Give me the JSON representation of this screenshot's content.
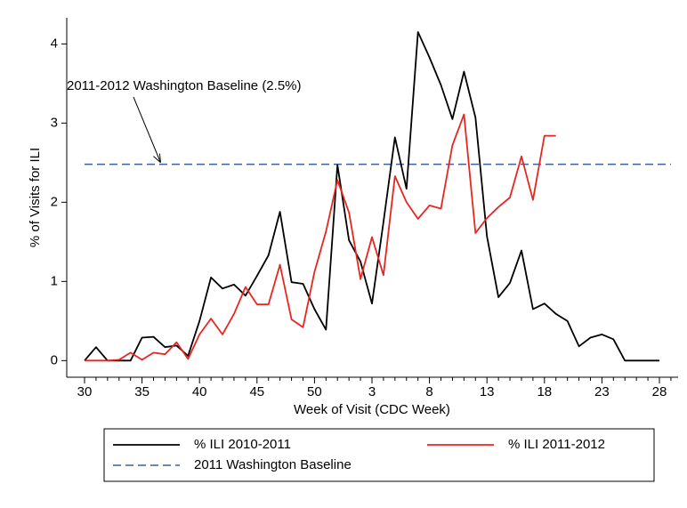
{
  "chart_data": {
    "type": "line",
    "x_label": "Week of Visit (CDC Week)",
    "y_label": "% of Visits for ILI",
    "categories": [
      "30",
      null,
      null,
      null,
      null,
      "35",
      null,
      null,
      null,
      null,
      "40",
      null,
      null,
      null,
      null,
      "45",
      null,
      null,
      null,
      null,
      "50",
      null,
      null,
      null,
      null,
      "3",
      null,
      null,
      null,
      null,
      "8",
      null,
      null,
      null,
      null,
      "13",
      null,
      null,
      null,
      null,
      "18",
      null,
      null,
      null,
      null,
      "23",
      null,
      null,
      null,
      null,
      "28",
      null
    ],
    "series": [
      {
        "name": "% ILI 2010-2011",
        "color": "#000000",
        "values": [
          0,
          0.17,
          0,
          0,
          0,
          0.29,
          0.3,
          0.17,
          0.19,
          0.06,
          0.5,
          1.05,
          0.91,
          0.96,
          0.82,
          1.07,
          1.33,
          1.88,
          0.99,
          0.97,
          0.65,
          0.39,
          2.47,
          1.52,
          1.25,
          0.72,
          1.75,
          2.82,
          2.17,
          4.15,
          3.83,
          3.48,
          3.05,
          3.65,
          3.07,
          1.57,
          0.8,
          0.98,
          1.39,
          0.65,
          0.72,
          0.59,
          0.5,
          0.18,
          0.29,
          0.33,
          0.27,
          0,
          0,
          0,
          0,
          null
        ]
      },
      {
        "name": "% ILI 2011-2012",
        "color": "#e8251f",
        "values": [
          0,
          0,
          0,
          0.01,
          0.1,
          0.01,
          0.1,
          0.08,
          0.23,
          0.02,
          0.33,
          0.53,
          0.33,
          0.59,
          0.93,
          0.71,
          0.71,
          1.21,
          0.52,
          0.42,
          1.12,
          1.63,
          2.28,
          1.87,
          1.03,
          1.56,
          1.08,
          2.33,
          2.0,
          1.79,
          1.96,
          1.92,
          2.72,
          3.11,
          1.61,
          1.8,
          1.94,
          2.06,
          2.58,
          2.03,
          2.84,
          2.84,
          null,
          null,
          null,
          null,
          null,
          null,
          null,
          null,
          null,
          null
        ]
      }
    ],
    "baseline": {
      "name": "2011 Washington Baseline",
      "value": 2.48,
      "color": "#3a5fa8",
      "annotation": "2011-2012 Washington Baseline (2.5%)"
    },
    "ylim": [
      -0.21,
      4.33
    ],
    "yticks": [
      0,
      1,
      2,
      3,
      4
    ]
  }
}
